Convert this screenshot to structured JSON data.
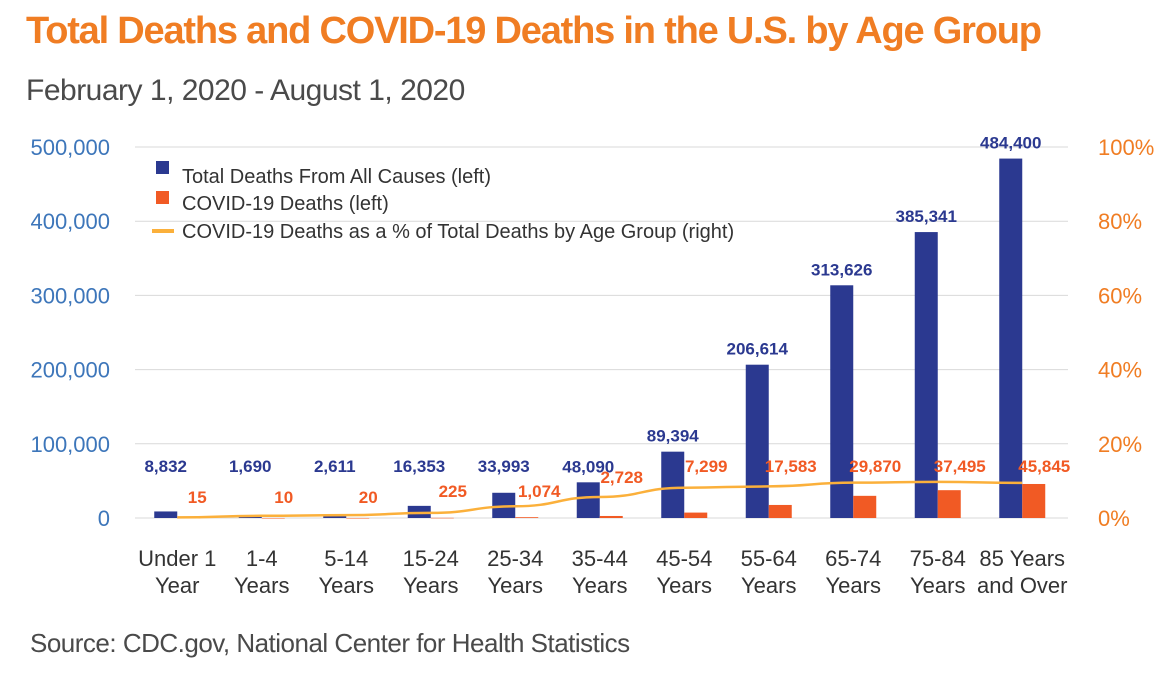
{
  "title": "Total Deaths and COVID-19 Deaths in the U.S. by Age Group",
  "subtitle": "February 1, 2020 - August 1, 2020",
  "source": "Source: CDC.gov, National Center for Health Statistics",
  "colors": {
    "total": "#2b3990",
    "covid": "#f15a24",
    "pct_line": "#fbb03b",
    "title": "#f07d23",
    "left_axis": "#3d76ba",
    "right_axis": "#f07d23",
    "grid": "#d9d9d9"
  },
  "chart_data": {
    "type": "bar",
    "title": "Total Deaths and COVID-19 Deaths in the U.S. by Age Group",
    "subtitle": "February 1, 2020 - August 1, 2020",
    "categories": [
      [
        "Under 1",
        "Year"
      ],
      [
        "1-4",
        "Years"
      ],
      [
        "5-14",
        "Years"
      ],
      [
        "15-24",
        "Years"
      ],
      [
        "25-34",
        "Years"
      ],
      [
        "35-44",
        "Years"
      ],
      [
        "45-54",
        "Years"
      ],
      [
        "55-64",
        "Years"
      ],
      [
        "65-74",
        "Years"
      ],
      [
        "75-84",
        "Years"
      ],
      [
        "85 Years",
        "and Over"
      ]
    ],
    "series": [
      {
        "name": "Total Deaths From All Causes (left)",
        "kind": "bar",
        "axis": "left",
        "values": [
          8832,
          1690,
          2611,
          16353,
          33993,
          48090,
          89394,
          206614,
          313626,
          385341,
          484400
        ],
        "labels": [
          "8,832",
          "1,690",
          "2,611",
          "16,353",
          "33,993",
          "48,090",
          "89,394",
          "206,614",
          "313,626",
          "385,341",
          "484,400"
        ]
      },
      {
        "name": "COVID-19 Deaths (left)",
        "kind": "bar",
        "axis": "left",
        "values": [
          15,
          10,
          20,
          225,
          1074,
          2728,
          7299,
          17583,
          29870,
          37495,
          45845
        ],
        "labels": [
          "15",
          "10",
          "20",
          "225",
          "1,074",
          "2,728",
          "7,299",
          "17,583",
          "29,870",
          "37,495",
          "45,845"
        ]
      },
      {
        "name": "COVID-19 Deaths as a % of Total Deaths by Age Group (right)",
        "kind": "line",
        "axis": "right",
        "values": [
          0.17,
          0.59,
          0.77,
          1.38,
          3.16,
          5.67,
          8.17,
          8.51,
          9.52,
          9.73,
          9.46
        ]
      }
    ],
    "ylim_left": [
      0,
      500000
    ],
    "ylim_right": [
      0,
      100
    ],
    "yticks_left": [
      "0",
      "100,000",
      "200,000",
      "300,000",
      "400,000",
      "500,000"
    ],
    "yticks_right": [
      "0%",
      "20%",
      "40%",
      "60%",
      "80%",
      "100%"
    ],
    "grid": true,
    "legend_position": "top-left"
  }
}
